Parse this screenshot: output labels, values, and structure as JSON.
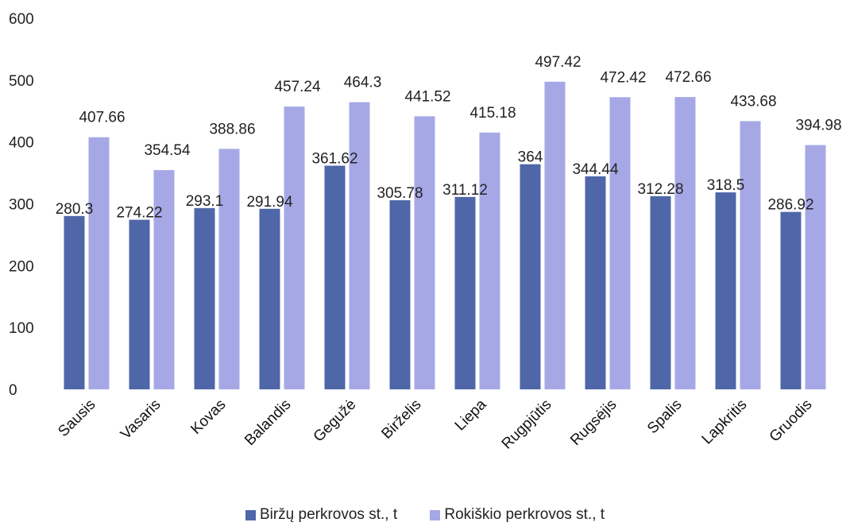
{
  "chart_data": {
    "type": "bar",
    "categories": [
      "Sausis",
      "Vasaris",
      "Kovas",
      "Balandis",
      "Gegužė",
      "Birželis",
      "Liepa",
      "Rugpjūtis",
      "Rugsėjis",
      "Spalis",
      "Lapkritis",
      "Gruodis"
    ],
    "series": [
      {
        "name": "Biržų perkrovos st., t",
        "values": [
          280.3,
          274.22,
          293.1,
          291.94,
          361.62,
          305.78,
          311.12,
          364,
          344.44,
          312.28,
          318.5,
          286.92
        ],
        "labels": [
          "280.3",
          "274.22",
          "293.1",
          "291.94",
          "361.62",
          "305.78",
          "311.12",
          "364",
          "344.44",
          "312.28",
          "318.5",
          "286.92"
        ],
        "color": "#4f67a8"
      },
      {
        "name": "Rokiškio perkrovos st., t",
        "values": [
          407.66,
          354.54,
          388.86,
          457.24,
          464.3,
          441.52,
          415.18,
          497.42,
          472.42,
          472.66,
          433.68,
          394.98
        ],
        "labels": [
          "407.66",
          "354.54",
          "388.86",
          "457.24",
          "464.3",
          "441.52",
          "415.18",
          "497.42",
          "472.42",
          "472.66",
          "433.68",
          "394.98"
        ],
        "color": "#a6a8e6"
      }
    ],
    "yticks": [
      "0",
      "100",
      "200",
      "300",
      "400",
      "500",
      "600"
    ],
    "ylim": [
      0,
      600
    ],
    "grid": false,
    "legend_position": "bottom"
  }
}
